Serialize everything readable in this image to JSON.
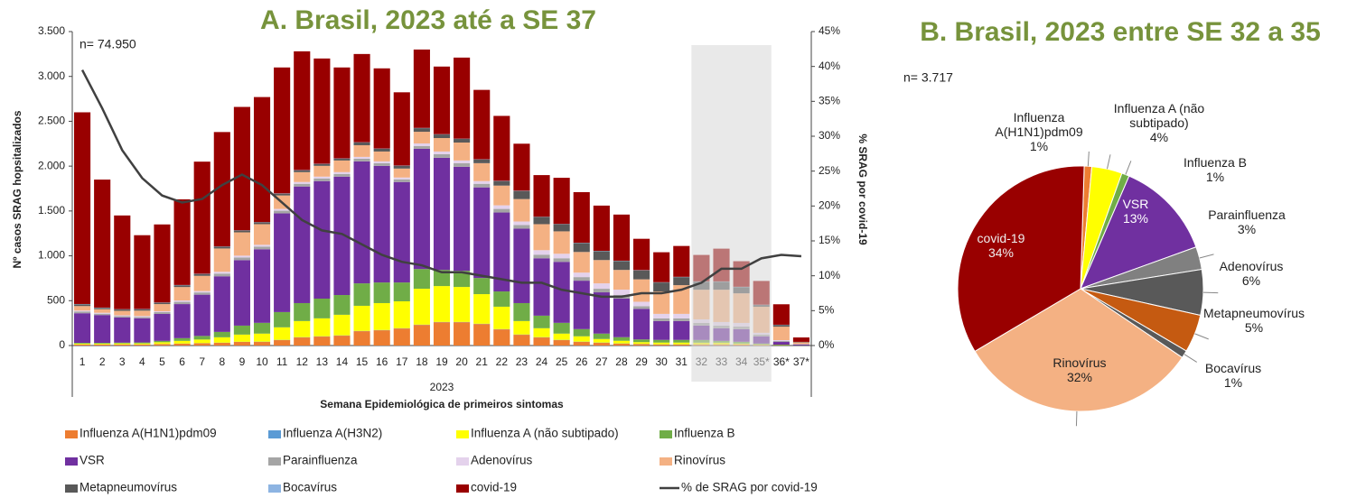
{
  "chart_data": [
    {
      "type": "bar",
      "stacked": true,
      "title": "A. Brasil, 2023 até a SE 37",
      "annotation": "n= 74.950",
      "x_label": "Semana Epidemiológica de primeiros sintomas",
      "x_group_label": "2023",
      "y_label": "Nº casos SRAG hopsitalizados",
      "y2_label": "% SRAG por covid-19",
      "categories": [
        "1",
        "2",
        "3",
        "4",
        "5",
        "6",
        "7",
        "8",
        "9",
        "10",
        "11",
        "12",
        "13",
        "14",
        "15",
        "16",
        "17",
        "18",
        "19",
        "20",
        "21",
        "22",
        "23",
        "24",
        "25",
        "26",
        "27",
        "28",
        "29",
        "30",
        "31",
        "32",
        "33",
        "34",
        "35*",
        "36*",
        "37*"
      ],
      "ylim": [
        0,
        3500
      ],
      "yticks": [
        0,
        500,
        {
          "value": 1000,
          "label": "1.000"
        },
        {
          "value": 1500,
          "label": "1.500"
        },
        {
          "value": 2000,
          "label": "2.000"
        },
        {
          "value": 2500,
          "label": "2.500"
        },
        {
          "value": 3000,
          "label": "3.000"
        },
        {
          "value": 3500,
          "label": "3.500"
        }
      ],
      "y2lim": [
        0,
        45
      ],
      "y2ticks": [
        {
          "value": 0,
          "label": "0%"
        },
        {
          "value": 5,
          "label": "5%"
        },
        {
          "value": 10,
          "label": "10%"
        },
        {
          "value": 15,
          "label": "15%"
        },
        {
          "value": 20,
          "label": "20%"
        },
        {
          "value": 25,
          "label": "25%"
        },
        {
          "value": 30,
          "label": "30%"
        },
        {
          "value": 35,
          "label": "35%"
        },
        {
          "value": 40,
          "label": "40%"
        },
        {
          "value": 45,
          "label": "45%"
        }
      ],
      "series": [
        {
          "name": "Influenza A(H1N1)pdm09",
          "color": "#ed7d31",
          "values": [
            10,
            10,
            10,
            10,
            15,
            20,
            25,
            30,
            40,
            40,
            60,
            90,
            100,
            110,
            160,
            170,
            190,
            230,
            260,
            260,
            240,
            180,
            120,
            90,
            60,
            40,
            30,
            20,
            15,
            10,
            10,
            10,
            10,
            10,
            5,
            2,
            0
          ]
        },
        {
          "name": "Influenza A(H3N2)",
          "color": "#5b9bd5",
          "values": [
            2,
            2,
            2,
            2,
            2,
            2,
            2,
            2,
            2,
            3,
            3,
            3,
            3,
            3,
            3,
            3,
            3,
            3,
            3,
            3,
            3,
            3,
            3,
            3,
            3,
            3,
            3,
            3,
            3,
            3,
            3,
            2,
            2,
            2,
            2,
            1,
            0
          ]
        },
        {
          "name": "Influenza A (não subtipado)",
          "color": "#ffff00",
          "values": [
            10,
            10,
            12,
            12,
            20,
            30,
            40,
            60,
            80,
            90,
            140,
            180,
            200,
            230,
            280,
            300,
            300,
            400,
            400,
            390,
            330,
            250,
            150,
            100,
            70,
            60,
            40,
            30,
            20,
            20,
            20,
            20,
            20,
            10,
            5,
            2,
            0
          ]
        },
        {
          "name": "Influenza B",
          "color": "#70ad47",
          "values": [
            8,
            8,
            8,
            10,
            15,
            30,
            40,
            60,
            100,
            120,
            170,
            200,
            220,
            220,
            250,
            230,
            210,
            220,
            180,
            180,
            180,
            170,
            200,
            140,
            120,
            80,
            60,
            40,
            30,
            30,
            30,
            30,
            20,
            20,
            10,
            5,
            2
          ]
        },
        {
          "name": "VSR",
          "color": "#7030a0",
          "values": [
            330,
            310,
            280,
            270,
            300,
            380,
            460,
            620,
            730,
            820,
            1100,
            1300,
            1310,
            1320,
            1360,
            1300,
            1120,
            1340,
            1250,
            1160,
            1010,
            880,
            830,
            640,
            680,
            540,
            460,
            430,
            340,
            210,
            210,
            160,
            140,
            140,
            80,
            30,
            10
          ]
        },
        {
          "name": "Parainfluenza",
          "color": "#a5a5a5",
          "values": [
            20,
            15,
            15,
            15,
            20,
            25,
            25,
            30,
            30,
            30,
            30,
            30,
            30,
            30,
            30,
            30,
            30,
            30,
            40,
            40,
            40,
            40,
            40,
            40,
            40,
            40,
            40,
            40,
            30,
            30,
            30,
            30,
            30,
            30,
            20,
            10,
            2
          ]
        },
        {
          "name": "Adenovírus",
          "color": "#e4d2ec",
          "values": [
            10,
            10,
            10,
            10,
            10,
            15,
            15,
            20,
            20,
            20,
            20,
            20,
            20,
            20,
            20,
            20,
            20,
            30,
            30,
            30,
            30,
            40,
            40,
            50,
            50,
            50,
            60,
            60,
            50,
            50,
            50,
            40,
            40,
            40,
            20,
            10,
            2
          ]
        },
        {
          "name": "Rinovírus",
          "color": "#f4b183",
          "values": [
            50,
            40,
            50,
            60,
            80,
            150,
            170,
            260,
            260,
            230,
            150,
            110,
            120,
            130,
            130,
            110,
            100,
            130,
            150,
            200,
            200,
            220,
            250,
            290,
            250,
            230,
            260,
            220,
            250,
            250,
            320,
            330,
            360,
            330,
            290,
            150,
            20
          ]
        },
        {
          "name": "Metapneumovírus",
          "color": "#595959",
          "values": [
            20,
            15,
            15,
            15,
            15,
            20,
            20,
            20,
            20,
            20,
            20,
            20,
            20,
            20,
            30,
            30,
            30,
            40,
            40,
            40,
            40,
            50,
            90,
            80,
            80,
            100,
            100,
            100,
            100,
            100,
            90,
            90,
            90,
            70,
            20,
            20,
            5
          ]
        },
        {
          "name": "Bocavírus",
          "color": "#8db4e2",
          "values": [
            3,
            3,
            3,
            3,
            3,
            3,
            3,
            3,
            3,
            3,
            3,
            3,
            3,
            3,
            3,
            3,
            3,
            3,
            3,
            3,
            3,
            3,
            3,
            3,
            3,
            3,
            3,
            3,
            3,
            3,
            3,
            3,
            3,
            3,
            3,
            2,
            0
          ]
        },
        {
          "name": "covid-19",
          "color": "#990000",
          "values": [
            2137,
            1427,
            1045,
            823,
            870,
            955,
            1250,
            1275,
            1375,
            1394,
            1404,
            1324,
            1174,
            1014,
            984,
            894,
            817,
            874,
            754,
            904,
            774,
            724,
            524,
            464,
            514,
            564,
            504,
            514,
            349,
            334,
            344,
            295,
            365,
            285,
            265,
            228,
            49
          ]
        },
        {
          "name": "% de SRAG por covid-19",
          "color": "#404040",
          "type": "line",
          "axis": "y2",
          "values": [
            39.5,
            34,
            28,
            24,
            21.5,
            20.5,
            21,
            23,
            24.5,
            23,
            20.5,
            18,
            16.5,
            16,
            14.5,
            13,
            12,
            11.5,
            10.5,
            10.5,
            10,
            9.5,
            9,
            9,
            8,
            7.5,
            7,
            7,
            7.5,
            7.5,
            8,
            9,
            11,
            11,
            12.5,
            13,
            12.8
          ]
        }
      ]
    },
    {
      "type": "pie",
      "title": "B. Brasil, 2023 entre SE 32 a 35",
      "annotation": "n= 3.717",
      "categories": [
        "Influenza A(H1N1)pdm09",
        "Influenza A (não subtipado)",
        "Influenza B",
        "VSR",
        "Parainfluenza",
        "Adenovírus",
        "Metapneumovírus",
        "Bocavírus",
        "Rinovírus",
        "covid-19"
      ],
      "values": [
        1,
        4,
        1,
        13,
        3,
        6,
        5,
        1,
        32,
        34
      ],
      "value_labels": [
        "1%",
        "4%",
        "1%",
        "13%",
        "3%",
        "6%",
        "5%",
        "1%",
        "32%",
        "34%"
      ],
      "colors": [
        "#ed7d31",
        "#ffff00",
        "#70ad47",
        "#7030a0",
        "#808080",
        "#595959",
        "#c55a11",
        "#595959",
        "#f4b183",
        "#990000"
      ]
    }
  ]
}
